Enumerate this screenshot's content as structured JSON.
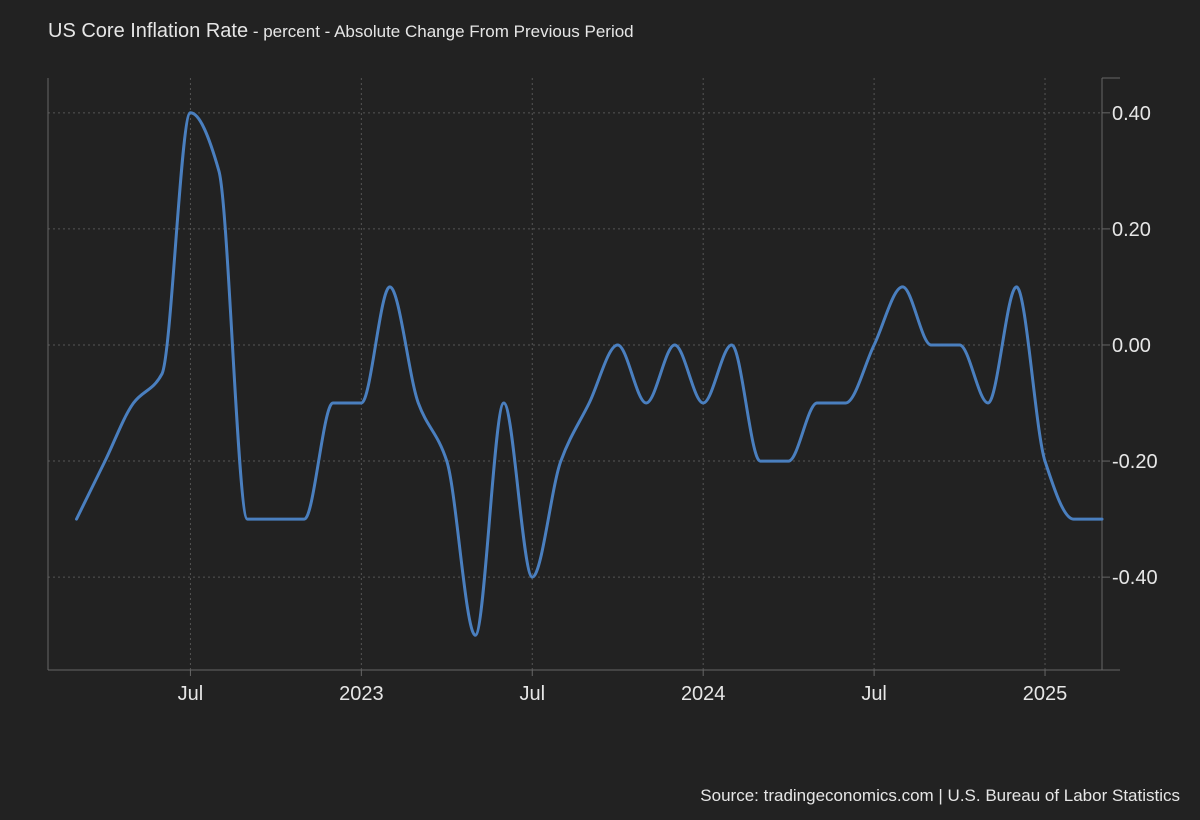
{
  "title": "US Core Inflation Rate",
  "subtitle": "percent - Absolute Change From Previous Period",
  "source": "Source: tradingeconomics.com | U.S. Bureau of Labor Statistics",
  "colors": {
    "background": "#222222",
    "line": "#4a7fbf",
    "grid": "#555555",
    "axis": "#666666",
    "text": "#e6e6e6"
  },
  "chart_data": {
    "type": "line",
    "title": "US Core Inflation Rate",
    "subtitle": "percent - Absolute Change From Previous Period",
    "xlabel": "",
    "ylabel": "",
    "x_tick_labels": [
      "Jul",
      "2023",
      "Jul",
      "2024",
      "Jul",
      "2025"
    ],
    "x_tick_dates": [
      "2022-07",
      "2023-01",
      "2023-07",
      "2024-01",
      "2024-07",
      "2025-01"
    ],
    "y_tick_labels": [
      "0.40",
      "0.20",
      "0.00",
      "-0.20",
      "-0.40"
    ],
    "y_tick_values": [
      0.4,
      0.2,
      0.0,
      -0.2,
      -0.4
    ],
    "ylim": [
      -0.56,
      0.46
    ],
    "xlim": [
      "2022-02",
      "2025-02"
    ],
    "grid": true,
    "y_axis_position": "right",
    "series": [
      {
        "x": [
          "2022-03",
          "2022-04",
          "2022-05",
          "2022-06",
          "2022-07",
          "2022-08",
          "2022-09",
          "2022-10",
          "2022-11",
          "2022-12",
          "2023-01",
          "2023-02",
          "2023-03",
          "2023-04",
          "2023-05",
          "2023-06",
          "2023-07",
          "2023-08",
          "2023-09",
          "2023-10",
          "2023-11",
          "2023-12",
          "2024-01",
          "2024-02",
          "2024-03",
          "2024-04",
          "2024-05",
          "2024-06",
          "2024-07",
          "2024-08",
          "2024-09",
          "2024-10",
          "2024-11",
          "2024-12",
          "2025-01",
          "2025-02",
          "2025-03"
        ],
        "values": [
          -0.3,
          -0.2,
          -0.1,
          -0.05,
          0.4,
          0.3,
          -0.3,
          -0.3,
          -0.3,
          -0.1,
          -0.1,
          0.1,
          -0.1,
          -0.2,
          -0.5,
          -0.1,
          -0.4,
          -0.2,
          -0.1,
          0.0,
          -0.1,
          0.0,
          -0.1,
          0.0,
          -0.2,
          -0.2,
          -0.1,
          -0.1,
          0.0,
          0.1,
          0.0,
          0.0,
          -0.1,
          0.1,
          -0.2,
          -0.3,
          -0.3
        ]
      }
    ]
  }
}
